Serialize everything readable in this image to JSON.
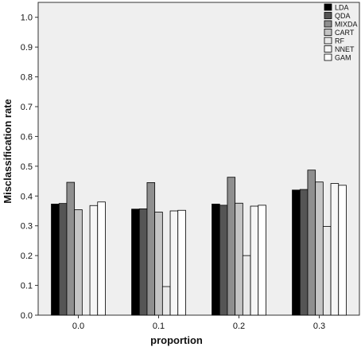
{
  "chart_data": {
    "type": "bar",
    "title": "",
    "xlabel": "proportion",
    "ylabel": "Misclassification rate",
    "categories": [
      "0.0",
      "0.1",
      "0.2",
      "0.3"
    ],
    "ylim": [
      0,
      1.05
    ],
    "yticks": [
      "0.0",
      "0.1",
      "0.2",
      "0.3",
      "0.4",
      "0.5",
      "0.6",
      "0.7",
      "0.8",
      "0.9",
      "1.0"
    ],
    "grid": false,
    "legend_position": "top-right",
    "series": [
      {
        "name": "LDA",
        "color": "#000000",
        "values": [
          0.373,
          0.356,
          0.373,
          0.42
        ]
      },
      {
        "name": "QDA",
        "color": "#555555",
        "values": [
          0.375,
          0.357,
          0.369,
          0.422
        ]
      },
      {
        "name": "MIXDA",
        "color": "#8f8f8f",
        "values": [
          0.446,
          0.445,
          0.463,
          0.487
        ]
      },
      {
        "name": "CART",
        "color": "#c4c4c4",
        "values": [
          0.354,
          0.346,
          0.376,
          0.447
        ]
      },
      {
        "name": "RF",
        "color": "#e9e9e9",
        "values": [
          0.0,
          0.096,
          0.2,
          0.298
        ]
      },
      {
        "name": "NNET",
        "color": "#f6f6f6",
        "values": [
          0.368,
          0.35,
          0.366,
          0.442
        ]
      },
      {
        "name": "GAM",
        "color": "#ffffff",
        "values": [
          0.38,
          0.352,
          0.369,
          0.436
        ]
      }
    ],
    "plot_background": "#efefef"
  }
}
